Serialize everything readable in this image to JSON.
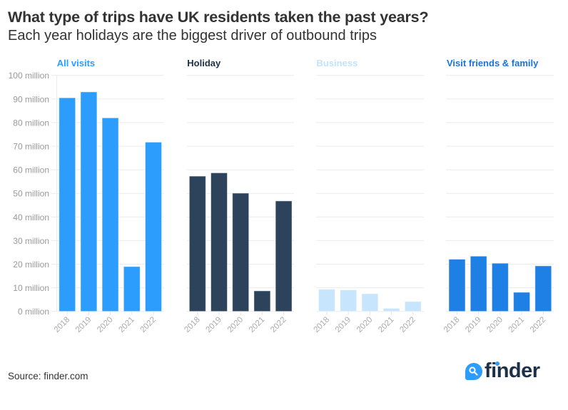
{
  "header": {
    "title": "What type of trips have UK residents taken the past years?",
    "subtitle": "Each year holidays are the biggest driver of outbound trips"
  },
  "footer": {
    "source": "Source: finder.com",
    "logo_text": "finder",
    "logo_icon": "search-icon"
  },
  "chart_data": {
    "type": "bar",
    "layout": "small-multiples",
    "title": "What type of trips have UK residents taken the past years?",
    "subtitle": "Each year holidays are the biggest driver of outbound trips",
    "xlabel": "",
    "ylabel": "",
    "ylim": [
      0,
      100000000
    ],
    "grid": true,
    "y_ticks": [
      0,
      10000000,
      20000000,
      30000000,
      40000000,
      50000000,
      60000000,
      70000000,
      80000000,
      90000000,
      100000000
    ],
    "y_tick_labels": [
      "0 million",
      "10 million",
      "20 million",
      "30 million",
      "40 million",
      "50 million",
      "60 million",
      "70 million",
      "80 million",
      "90 million",
      "100 million"
    ],
    "categories": [
      "2018",
      "2019",
      "2020",
      "2021",
      "2022"
    ],
    "series": [
      {
        "name": "All visits",
        "color": "#2c9dfd",
        "title_color": "#2c9dfd",
        "values": [
          90500000,
          93000000,
          82000000,
          19000000,
          71700000
        ]
      },
      {
        "name": "Holiday",
        "color": "#2d435c",
        "title_color": "#1e3048",
        "values": [
          57300000,
          58700000,
          50100000,
          8700000,
          46800000
        ]
      },
      {
        "name": "Business",
        "color": "#c7e6fd",
        "title_color": "#c2e3fc",
        "values": [
          9400000,
          9100000,
          7500000,
          1300000,
          4200000
        ]
      },
      {
        "name": "Visit friends & family",
        "color": "#1e80e4",
        "title_color": "#1a73d9",
        "values": [
          22100000,
          23400000,
          20400000,
          8100000,
          19300000
        ]
      }
    ]
  }
}
